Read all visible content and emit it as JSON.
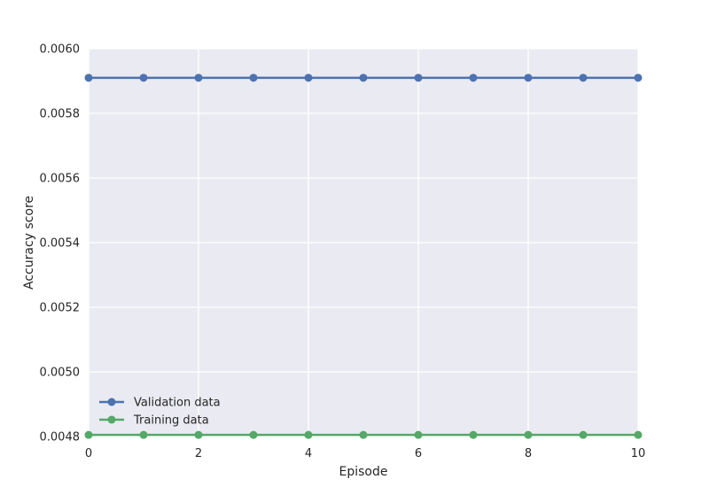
{
  "chart_data": {
    "type": "line",
    "title": "",
    "xlabel": "Episode",
    "ylabel": "Accuracy score",
    "xlim": [
      0,
      10
    ],
    "ylim": [
      0.0048,
      0.006
    ],
    "x_ticks": [
      0,
      2,
      4,
      6,
      8,
      10
    ],
    "x_tick_labels": [
      "0",
      "2",
      "4",
      "6",
      "8",
      "10"
    ],
    "y_ticks": [
      0.0048,
      0.005,
      0.0052,
      0.0054,
      0.0056,
      0.0058,
      0.006
    ],
    "y_tick_labels": [
      "0.0048",
      "0.0050",
      "0.0052",
      "0.0054",
      "0.0056",
      "0.0058",
      "0.0060"
    ],
    "grid": true,
    "legend_position": "lower-left",
    "background_color": "#eaeaf2",
    "x": [
      0,
      1,
      2,
      3,
      4,
      5,
      6,
      7,
      8,
      9,
      10
    ],
    "series": [
      {
        "name": "Validation data",
        "color": "#4c72b0",
        "values": [
          0.00591,
          0.00591,
          0.00591,
          0.00591,
          0.00591,
          0.00591,
          0.00591,
          0.00591,
          0.00591,
          0.00591,
          0.00591
        ]
      },
      {
        "name": "Training data",
        "color": "#55a868",
        "values": [
          0.004805,
          0.004805,
          0.004805,
          0.004805,
          0.004805,
          0.004805,
          0.004805,
          0.004805,
          0.004805,
          0.004805,
          0.004805
        ]
      }
    ]
  }
}
